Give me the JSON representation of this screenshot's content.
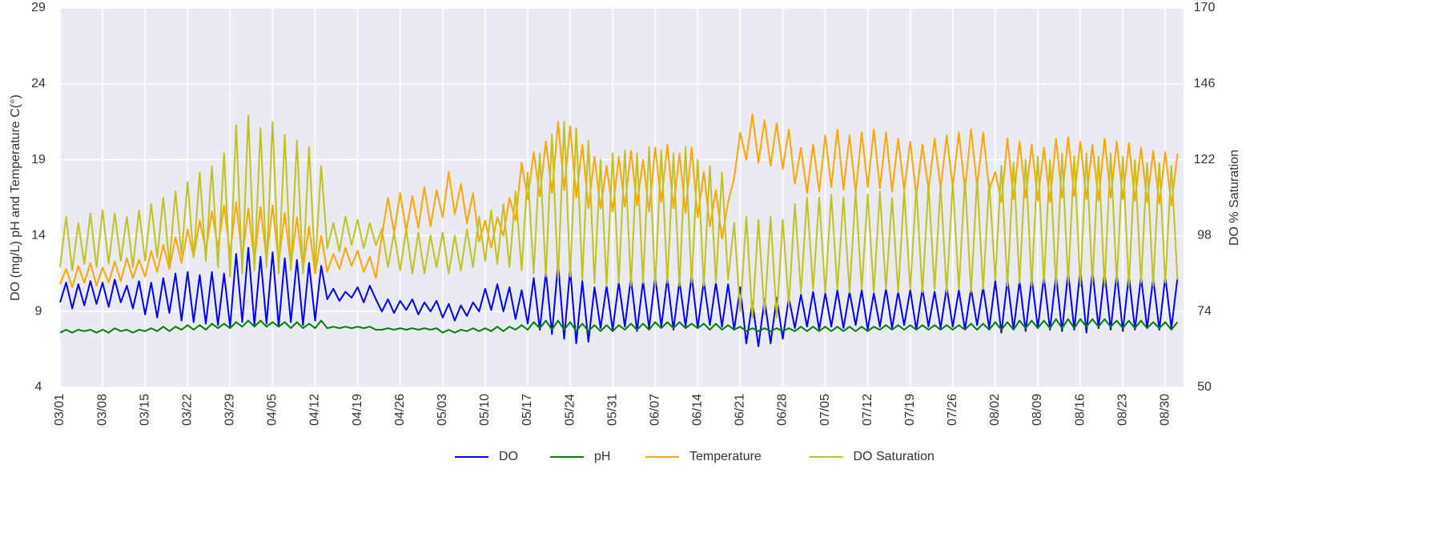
{
  "chart_data": {
    "type": "line",
    "ylabel": "DO (mg/L) pH and Temperature C(°)",
    "y2label": "DO % Saturation",
    "x": [
      "03/01",
      "03/02",
      "03/03",
      "03/04",
      "03/05",
      "03/06",
      "03/07",
      "03/08",
      "03/09",
      "03/10",
      "03/11",
      "03/12",
      "03/13",
      "03/14",
      "03/15",
      "03/16",
      "03/17",
      "03/18",
      "03/19",
      "03/20",
      "03/21",
      "03/22",
      "03/23",
      "03/24",
      "03/25",
      "03/26",
      "03/27",
      "03/28",
      "03/29",
      "03/30",
      "03/31",
      "04/01",
      "04/02",
      "04/03",
      "04/04",
      "04/05",
      "04/06",
      "04/07",
      "04/08",
      "04/09",
      "04/10",
      "04/11",
      "04/12",
      "04/13",
      "04/14",
      "04/15",
      "04/16",
      "04/17",
      "04/18",
      "04/19",
      "04/20",
      "04/21",
      "04/22",
      "04/23",
      "04/24",
      "04/25",
      "04/26",
      "04/27",
      "04/28",
      "04/29",
      "04/30",
      "05/01",
      "05/02",
      "05/03",
      "05/04",
      "05/05",
      "05/06",
      "05/07",
      "05/08",
      "05/09",
      "05/10",
      "05/11",
      "05/12",
      "05/13",
      "05/14",
      "05/15",
      "05/16",
      "05/17",
      "05/18",
      "05/19",
      "05/20",
      "05/21",
      "05/22",
      "05/23",
      "05/24",
      "05/25",
      "05/26",
      "05/27",
      "05/28",
      "05/29",
      "05/30",
      "05/31",
      "06/01",
      "06/02",
      "06/03",
      "06/04",
      "06/05",
      "06/06",
      "06/07",
      "06/08",
      "06/09",
      "06/10",
      "06/11",
      "06/12",
      "06/13",
      "06/14",
      "06/15",
      "06/16",
      "06/17",
      "06/18",
      "06/19",
      "06/20",
      "06/21",
      "06/22",
      "06/23",
      "06/24",
      "06/25",
      "06/26",
      "06/27",
      "06/28",
      "06/29",
      "06/30",
      "07/01",
      "07/02",
      "07/03",
      "07/04",
      "07/05",
      "07/06",
      "07/07",
      "07/08",
      "07/09",
      "07/10",
      "07/11",
      "07/12",
      "07/13",
      "07/14",
      "07/15",
      "07/16",
      "07/17",
      "07/18",
      "07/19",
      "07/20",
      "07/21",
      "07/22",
      "07/23",
      "07/24",
      "07/25",
      "07/26",
      "07/27",
      "07/28",
      "07/29",
      "07/30",
      "07/31",
      "08/01",
      "08/02",
      "08/03",
      "08/04",
      "08/05",
      "08/06",
      "08/07",
      "08/08",
      "08/09",
      "08/10",
      "08/11",
      "08/12",
      "08/13",
      "08/14",
      "08/15",
      "08/16",
      "08/17",
      "08/18",
      "08/19",
      "08/20",
      "08/21",
      "08/22",
      "08/23",
      "08/24",
      "08/25",
      "08/26",
      "08/27",
      "08/28",
      "08/29",
      "08/30",
      "08/31",
      "09/01"
    ],
    "series": [
      {
        "name": "DO",
        "color": "#0000ff",
        "values": [
          9.6,
          10.9,
          9.2,
          10.8,
          9.4,
          11.0,
          9.5,
          10.9,
          9.3,
          11.1,
          9.6,
          10.7,
          9.2,
          11.0,
          8.8,
          10.9,
          8.6,
          11.2,
          8.9,
          11.5,
          8.4,
          11.6,
          8.3,
          11.4,
          8.2,
          11.6,
          8.1,
          11.5,
          8.0,
          12.8,
          8.3,
          13.2,
          8.1,
          12.6,
          8.2,
          12.9,
          8.0,
          12.5,
          8.3,
          12.4,
          8.1,
          12.2,
          8.4,
          12.0,
          9.8,
          10.5,
          9.7,
          10.3,
          9.9,
          10.6,
          9.6,
          10.7,
          9.8,
          9.0,
          9.8,
          8.9,
          9.7,
          9.1,
          9.8,
          8.8,
          9.6,
          9.0,
          9.7,
          8.6,
          9.5,
          8.4,
          9.4,
          8.7,
          9.6,
          9.0,
          10.5,
          9.1,
          10.8,
          9.0,
          10.6,
          8.5,
          10.4,
          8.2,
          11.2,
          7.8,
          11.6,
          7.5,
          12.2,
          7.2,
          11.8,
          6.9,
          11.0,
          7.0,
          10.6,
          7.9,
          10.7,
          7.8,
          10.9,
          8.0,
          11.2,
          7.7,
          11.0,
          7.9,
          11.3,
          8.0,
          11.2,
          7.8,
          11.0,
          8.0,
          11.4,
          7.9,
          11.0,
          8.1,
          10.9,
          8.0,
          10.8,
          7.8,
          10.6,
          6.9,
          9.6,
          6.7,
          9.8,
          6.9,
          9.9,
          7.2,
          9.9,
          7.9,
          10.1,
          8.0,
          10.3,
          7.8,
          10.2,
          8.0,
          10.4,
          7.9,
          10.3,
          8.1,
          10.4,
          7.8,
          10.2,
          8.0,
          10.5,
          7.9,
          10.3,
          8.1,
          10.4,
          7.8,
          10.5,
          8.0,
          10.3,
          7.9,
          10.6,
          8.0,
          10.4,
          7.8,
          10.5,
          8.1,
          10.6,
          7.9,
          11.0,
          7.6,
          11.1,
          7.8,
          11.0,
          7.7,
          11.2,
          7.9,
          11.3,
          7.8,
          11.4,
          7.7,
          11.6,
          7.8,
          11.8,
          7.6,
          11.7,
          7.9,
          11.6,
          7.8,
          11.5,
          7.7,
          11.4,
          7.8,
          11.3,
          7.9,
          11.2,
          7.8,
          11.3,
          7.9,
          11.2
        ]
      },
      {
        "name": "pH",
        "color": "#008000",
        "values": [
          7.6,
          7.8,
          7.6,
          7.8,
          7.7,
          7.8,
          7.6,
          7.8,
          7.6,
          7.9,
          7.7,
          7.8,
          7.6,
          7.8,
          7.7,
          7.9,
          7.7,
          8.0,
          7.7,
          8.0,
          7.8,
          8.1,
          7.8,
          8.1,
          7.8,
          8.2,
          7.9,
          8.2,
          7.9,
          8.3,
          8.0,
          8.4,
          8.0,
          8.4,
          8.0,
          8.3,
          8.0,
          8.3,
          7.9,
          8.3,
          7.9,
          8.2,
          7.9,
          8.4,
          7.9,
          8.0,
          7.9,
          8.0,
          7.9,
          8.0,
          7.9,
          8.0,
          7.8,
          7.8,
          7.9,
          7.8,
          7.9,
          7.8,
          7.9,
          7.8,
          7.9,
          7.8,
          7.9,
          7.6,
          7.8,
          7.6,
          7.8,
          7.7,
          7.9,
          7.7,
          7.9,
          7.7,
          8.0,
          7.7,
          8.0,
          7.8,
          8.1,
          7.8,
          8.3,
          7.9,
          8.4,
          7.8,
          8.4,
          7.8,
          8.3,
          7.7,
          8.2,
          7.7,
          8.1,
          7.7,
          8.1,
          7.7,
          8.1,
          7.8,
          8.2,
          7.8,
          8.2,
          7.8,
          8.3,
          7.9,
          8.3,
          7.9,
          8.3,
          7.9,
          8.2,
          7.9,
          8.2,
          7.8,
          8.2,
          7.8,
          8.1,
          7.8,
          8.0,
          7.7,
          7.9,
          7.7,
          7.9,
          7.7,
          7.9,
          7.7,
          7.9,
          7.7,
          8.0,
          7.7,
          8.0,
          7.7,
          8.0,
          7.7,
          8.0,
          7.7,
          8.0,
          7.7,
          8.0,
          7.7,
          8.0,
          7.8,
          8.1,
          7.8,
          8.1,
          7.8,
          8.1,
          7.8,
          8.1,
          7.8,
          8.1,
          7.8,
          8.1,
          7.8,
          8.1,
          7.8,
          8.2,
          7.8,
          8.2,
          7.8,
          8.3,
          7.8,
          8.3,
          7.8,
          8.4,
          7.9,
          8.4,
          7.9,
          8.4,
          7.9,
          8.5,
          7.9,
          8.5,
          7.9,
          8.5,
          8.0,
          8.5,
          8.0,
          8.5,
          8.0,
          8.4,
          7.9,
          8.4,
          7.9,
          8.4,
          7.9,
          8.3,
          7.9,
          8.3,
          7.8,
          8.3
        ]
      },
      {
        "name": "Temperature",
        "color": "#ffa500",
        "values": [
          10.8,
          11.8,
          10.6,
          12.0,
          10.9,
          12.2,
          10.7,
          11.9,
          10.9,
          12.3,
          11.0,
          12.5,
          11.2,
          12.4,
          11.3,
          13.0,
          11.6,
          13.4,
          11.8,
          13.9,
          12.2,
          14.4,
          12.6,
          15.0,
          13.0,
          15.6,
          13.2,
          16.0,
          12.8,
          16.2,
          12.5,
          15.8,
          12.3,
          15.9,
          12.4,
          16.0,
          12.2,
          15.5,
          12.0,
          15.2,
          11.8,
          14.6,
          11.5,
          14.0,
          11.6,
          12.8,
          11.8,
          13.2,
          12.0,
          13.0,
          11.6,
          12.6,
          11.2,
          14.0,
          16.5,
          14.2,
          16.8,
          14.3,
          16.6,
          14.5,
          17.2,
          14.6,
          17.0,
          15.2,
          18.2,
          15.4,
          17.4,
          14.8,
          16.8,
          13.6,
          15.0,
          13.2,
          15.2,
          14.0,
          16.5,
          15.0,
          18.8,
          16.4,
          19.5,
          16.6,
          20.2,
          16.8,
          21.5,
          17.0,
          21.2,
          16.5,
          20.0,
          15.8,
          19.2,
          15.8,
          18.6,
          15.6,
          19.2,
          15.9,
          19.6,
          16.0,
          19.0,
          15.6,
          19.8,
          16.2,
          20.0,
          15.8,
          19.4,
          15.5,
          19.8,
          15.2,
          18.2,
          14.6,
          17.0,
          13.8,
          16.2,
          17.8,
          20.8,
          19.0,
          22.0,
          18.8,
          21.6,
          18.6,
          21.4,
          18.4,
          21.0,
          17.4,
          19.8,
          16.8,
          20.0,
          16.9,
          20.6,
          17.2,
          21.0,
          17.0,
          20.6,
          16.8,
          20.8,
          17.2,
          21.0,
          17.1,
          20.8,
          16.9,
          20.4,
          17.0,
          20.2,
          16.6,
          20.0,
          17.0,
          20.4,
          17.1,
          20.6,
          17.2,
          20.8,
          17.0,
          21.0,
          17.2,
          20.8,
          17.0,
          18.2,
          16.2,
          20.4,
          16.4,
          20.2,
          16.5,
          20.0,
          16.3,
          19.8,
          16.2,
          20.4,
          16.5,
          20.5,
          16.6,
          20.2,
          16.4,
          20.0,
          16.3,
          20.4,
          16.5,
          20.2,
          16.4,
          20.1,
          16.3,
          19.8,
          16.2,
          19.6,
          16.1,
          19.5,
          16.0,
          19.4
        ]
      },
      {
        "name": "DO Saturation",
        "color": "#c2c21e",
        "axis": "y2",
        "values": [
          88,
          104,
          87,
          102,
          89,
          105,
          88,
          106,
          89,
          105,
          90,
          104,
          88,
          106,
          90,
          108,
          91,
          110,
          89,
          112,
          92,
          115,
          91,
          118,
          90,
          120,
          88,
          124,
          85,
          133,
          86,
          136,
          87,
          132,
          88,
          134,
          86,
          130,
          87,
          128,
          86,
          126,
          88,
          120,
          94,
          102,
          93,
          104,
          95,
          103,
          94,
          102,
          95,
          100,
          88,
          99,
          87,
          100,
          86,
          99,
          86,
          98,
          88,
          99,
          86,
          98,
          87,
          100,
          88,
          104,
          90,
          106,
          89,
          108,
          88,
          112,
          87,
          118,
          86,
          124,
          85,
          130,
          84,
          134,
          85,
          132,
          84,
          128,
          83,
          122,
          82,
          124,
          83,
          125,
          82,
          124,
          83,
          126,
          82,
          125,
          83,
          124,
          82,
          126,
          83,
          122,
          82,
          120,
          83,
          118,
          84,
          102,
          74,
          104,
          72,
          103,
          73,
          104,
          72,
          103,
          76,
          108,
          80,
          110,
          81,
          110,
          80,
          111,
          81,
          110,
          80,
          112,
          81,
          111,
          80,
          112,
          81,
          110,
          80,
          112,
          81,
          113,
          80,
          114,
          81,
          114,
          80,
          115,
          81,
          116,
          80,
          116,
          81,
          115,
          84,
          120,
          82,
          121,
          83,
          122,
          82,
          123,
          83,
          122,
          82,
          124,
          83,
          123,
          82,
          124,
          83,
          123,
          82,
          124,
          83,
          123,
          82,
          122,
          83,
          121,
          82,
          121,
          83,
          120,
          84
        ]
      }
    ],
    "xlim": [
      "03/01",
      "09/02"
    ],
    "xticks": [
      "03/01",
      "03/08",
      "03/15",
      "03/22",
      "03/29",
      "04/05",
      "04/12",
      "04/19",
      "04/26",
      "05/03",
      "05/10",
      "05/17",
      "05/24",
      "05/31",
      "06/07",
      "06/14",
      "06/21",
      "06/28",
      "07/05",
      "07/12",
      "07/19",
      "07/26",
      "08/02",
      "08/09",
      "08/16",
      "08/23",
      "08/30"
    ],
    "ylim": [
      4,
      29
    ],
    "yticks": [
      4,
      9,
      14,
      19,
      24,
      29
    ],
    "y2lim": [
      50,
      170
    ],
    "y2ticks": [
      50,
      74,
      98,
      122,
      146,
      170
    ],
    "grid": true,
    "legend": "bottom"
  }
}
